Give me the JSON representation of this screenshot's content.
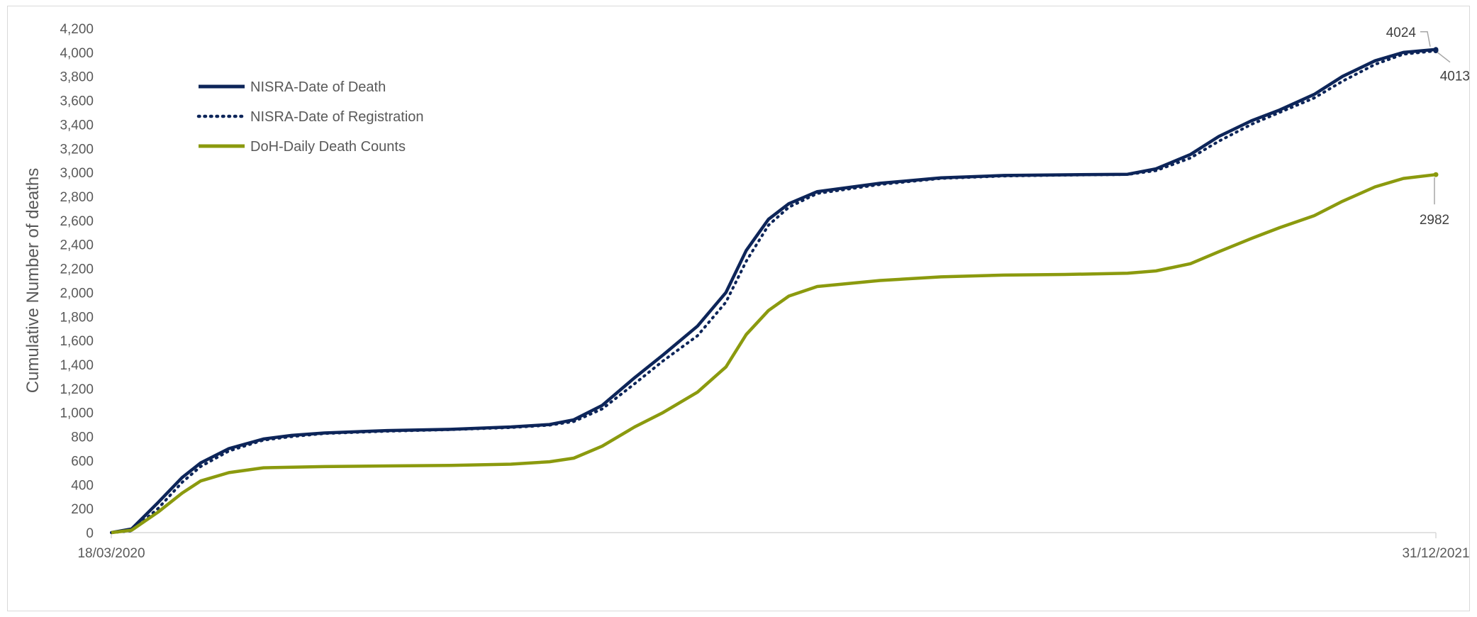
{
  "chart_data": {
    "type": "line",
    "title": "",
    "xlabel": "",
    "ylabel": "Cumulative Number of deaths",
    "x_start": "18/03/2020",
    "x_end": "31/12/2021",
    "x_tick_labels": [
      "18/03/2020",
      "31/12/2021"
    ],
    "ylim": [
      0,
      4200
    ],
    "y_ticks": [
      0,
      200,
      400,
      600,
      800,
      1000,
      1200,
      1400,
      1600,
      1800,
      2000,
      2200,
      2400,
      2600,
      2800,
      3000,
      3200,
      3400,
      3600,
      3800,
      4000,
      4200
    ],
    "y_tick_labels": [
      "0",
      "200",
      "400",
      "600",
      "800",
      "1,000",
      "1,200",
      "1,400",
      "1,600",
      "1,800",
      "2,000",
      "2,200",
      "2,400",
      "2,600",
      "2,800",
      "3,000",
      "3,200",
      "3,400",
      "3,600",
      "3,800",
      "4,000",
      "4,200"
    ],
    "grid": false,
    "legend_position": "top-left",
    "series": [
      {
        "name": "NISRA-Date of Death",
        "color": "#0d2559",
        "style": "solid",
        "end_label": "4024",
        "points": [
          [
            "2020-03-18",
            0
          ],
          [
            "2020-03-28",
            30
          ],
          [
            "2020-04-10",
            250
          ],
          [
            "2020-04-22",
            460
          ],
          [
            "2020-05-01",
            580
          ],
          [
            "2020-05-15",
            700
          ],
          [
            "2020-06-01",
            780
          ],
          [
            "2020-06-15",
            810
          ],
          [
            "2020-07-01",
            830
          ],
          [
            "2020-08-01",
            850
          ],
          [
            "2020-09-01",
            860
          ],
          [
            "2020-10-01",
            880
          ],
          [
            "2020-10-20",
            900
          ],
          [
            "2020-11-01",
            940
          ],
          [
            "2020-11-15",
            1060
          ],
          [
            "2020-12-01",
            1290
          ],
          [
            "2020-12-15",
            1480
          ],
          [
            "2021-01-01",
            1720
          ],
          [
            "2021-01-15",
            2000
          ],
          [
            "2021-01-25",
            2350
          ],
          [
            "2021-02-05",
            2610
          ],
          [
            "2021-02-15",
            2740
          ],
          [
            "2021-03-01",
            2840
          ],
          [
            "2021-04-01",
            2910
          ],
          [
            "2021-05-01",
            2955
          ],
          [
            "2021-06-01",
            2975
          ],
          [
            "2021-07-01",
            2980
          ],
          [
            "2021-08-01",
            2985
          ],
          [
            "2021-08-15",
            3030
          ],
          [
            "2021-09-01",
            3150
          ],
          [
            "2021-09-15",
            3300
          ],
          [
            "2021-10-01",
            3430
          ],
          [
            "2021-10-15",
            3520
          ],
          [
            "2021-11-01",
            3650
          ],
          [
            "2021-11-15",
            3800
          ],
          [
            "2021-12-01",
            3930
          ],
          [
            "2021-12-15",
            4000
          ],
          [
            "2021-12-31",
            4024
          ]
        ]
      },
      {
        "name": "NISRA-Date of Registration",
        "color": "#0d2559",
        "style": "dotted",
        "end_label": "4013",
        "points": [
          [
            "2020-03-18",
            0
          ],
          [
            "2020-03-28",
            15
          ],
          [
            "2020-04-10",
            200
          ],
          [
            "2020-04-22",
            420
          ],
          [
            "2020-05-01",
            550
          ],
          [
            "2020-05-15",
            680
          ],
          [
            "2020-06-01",
            770
          ],
          [
            "2020-06-15",
            800
          ],
          [
            "2020-07-01",
            825
          ],
          [
            "2020-08-01",
            845
          ],
          [
            "2020-09-01",
            858
          ],
          [
            "2020-10-01",
            875
          ],
          [
            "2020-10-20",
            895
          ],
          [
            "2020-11-01",
            925
          ],
          [
            "2020-11-15",
            1030
          ],
          [
            "2020-12-01",
            1240
          ],
          [
            "2020-12-15",
            1430
          ],
          [
            "2021-01-01",
            1640
          ],
          [
            "2021-01-15",
            1920
          ],
          [
            "2021-01-25",
            2260
          ],
          [
            "2021-02-05",
            2560
          ],
          [
            "2021-02-15",
            2710
          ],
          [
            "2021-03-01",
            2825
          ],
          [
            "2021-04-01",
            2900
          ],
          [
            "2021-05-01",
            2950
          ],
          [
            "2021-06-01",
            2970
          ],
          [
            "2021-07-01",
            2978
          ],
          [
            "2021-08-01",
            2983
          ],
          [
            "2021-08-15",
            3015
          ],
          [
            "2021-09-01",
            3120
          ],
          [
            "2021-09-15",
            3260
          ],
          [
            "2021-10-01",
            3400
          ],
          [
            "2021-10-15",
            3500
          ],
          [
            "2021-11-01",
            3620
          ],
          [
            "2021-11-15",
            3760
          ],
          [
            "2021-12-01",
            3900
          ],
          [
            "2021-12-15",
            3985
          ],
          [
            "2021-12-31",
            4013
          ]
        ]
      },
      {
        "name": "DoH-Daily Death Counts",
        "color": "#8b9a0e",
        "style": "solid",
        "end_label": "2982",
        "points": [
          [
            "2020-03-18",
            0
          ],
          [
            "2020-03-28",
            20
          ],
          [
            "2020-04-10",
            170
          ],
          [
            "2020-04-22",
            330
          ],
          [
            "2020-05-01",
            430
          ],
          [
            "2020-05-15",
            500
          ],
          [
            "2020-06-01",
            540
          ],
          [
            "2020-07-01",
            550
          ],
          [
            "2020-08-01",
            555
          ],
          [
            "2020-09-01",
            560
          ],
          [
            "2020-10-01",
            570
          ],
          [
            "2020-10-20",
            590
          ],
          [
            "2020-11-01",
            620
          ],
          [
            "2020-11-15",
            720
          ],
          [
            "2020-12-01",
            880
          ],
          [
            "2020-12-15",
            1000
          ],
          [
            "2021-01-01",
            1170
          ],
          [
            "2021-01-15",
            1380
          ],
          [
            "2021-01-25",
            1650
          ],
          [
            "2021-02-05",
            1850
          ],
          [
            "2021-02-15",
            1970
          ],
          [
            "2021-03-01",
            2050
          ],
          [
            "2021-04-01",
            2100
          ],
          [
            "2021-05-01",
            2130
          ],
          [
            "2021-06-01",
            2145
          ],
          [
            "2021-07-01",
            2150
          ],
          [
            "2021-08-01",
            2160
          ],
          [
            "2021-08-15",
            2180
          ],
          [
            "2021-09-01",
            2240
          ],
          [
            "2021-09-15",
            2340
          ],
          [
            "2021-10-01",
            2450
          ],
          [
            "2021-10-15",
            2540
          ],
          [
            "2021-11-01",
            2640
          ],
          [
            "2021-11-15",
            2760
          ],
          [
            "2021-12-01",
            2880
          ],
          [
            "2021-12-15",
            2950
          ],
          [
            "2021-12-31",
            2982
          ]
        ]
      }
    ],
    "end_labels": [
      {
        "series": "NISRA-Date of Death",
        "label": "4024",
        "position": "above-left"
      },
      {
        "series": "NISRA-Date of Registration",
        "label": "4013",
        "position": "below-right"
      },
      {
        "series": "DoH-Daily Death Counts",
        "label": "2982",
        "position": "below"
      }
    ]
  }
}
